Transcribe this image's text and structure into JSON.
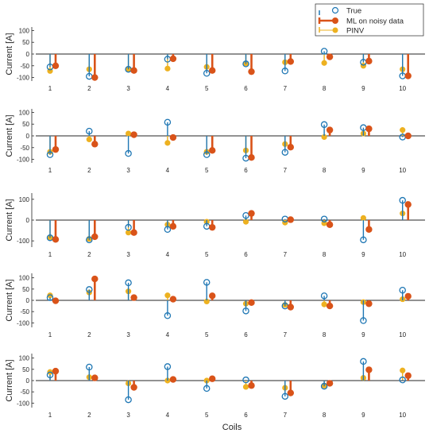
{
  "colors": {
    "true": "#1f77b4",
    "ml": "#d95319",
    "pinv": "#edb120",
    "axis": "#262626"
  },
  "legend": {
    "placement": "top-right",
    "entries": [
      {
        "key": "true",
        "label": "True"
      },
      {
        "key": "ml",
        "label": "ML on noisy data"
      },
      {
        "key": "pinv",
        "label": "PINV"
      }
    ]
  },
  "chart_data": {
    "type": "stem",
    "xlabel": "Coils",
    "ylabel": "Current [A]",
    "categories": [
      "1",
      "2",
      "3",
      "4",
      "5",
      "6",
      "7",
      "8",
      "9",
      "10"
    ],
    "panels": [
      {
        "ylim": [
          -115,
          115
        ],
        "yticks": [
          -100,
          -50,
          0,
          50,
          100
        ],
        "series": [
          {
            "name": "True",
            "values": [
              -55,
              -95,
              -65,
              -22,
              -82,
              -42,
              -72,
              12,
              -35,
              -93
            ]
          },
          {
            "name": "ML on noisy data",
            "values": [
              -50,
              -100,
              -70,
              -20,
              -70,
              -75,
              -32,
              -12,
              -30,
              -93
            ]
          },
          {
            "name": "PINV",
            "values": [
              -72,
              -65,
              -65,
              -62,
              -55,
              -40,
              -35,
              -38,
              -50,
              -65
            ]
          }
        ]
      },
      {
        "ylim": [
          -115,
          115
        ],
        "yticks": [
          -100,
          -50,
          0,
          50,
          100
        ],
        "series": [
          {
            "name": "True",
            "values": [
              -80,
              20,
              -75,
              58,
              -80,
              -95,
              -70,
              48,
              35,
              -5
            ]
          },
          {
            "name": "ML on noisy data",
            "values": [
              -58,
              -35,
              5,
              -7,
              -62,
              -92,
              -48,
              25,
              30,
              0
            ]
          },
          {
            "name": "PINV",
            "values": [
              -68,
              -15,
              10,
              -30,
              -68,
              -62,
              -35,
              -5,
              10,
              25
            ]
          }
        ]
      },
      {
        "ylim": [
          -130,
          130
        ],
        "yticks": [
          -100,
          0,
          100
        ],
        "series": [
          {
            "name": "True",
            "values": [
              -85,
              -95,
              -35,
              -45,
              -30,
              22,
              5,
              5,
              -95,
              95
            ]
          },
          {
            "name": "ML on noisy data",
            "values": [
              -93,
              -80,
              -60,
              -30,
              -35,
              32,
              2,
              -22,
              -45,
              75
            ]
          },
          {
            "name": "PINV",
            "values": [
              -85,
              -90,
              -60,
              -22,
              -8,
              -8,
              -12,
              -15,
              10,
              32
            ]
          }
        ]
      },
      {
        "ylim": [
          -120,
          120
        ],
        "yticks": [
          -100,
          -50,
          0,
          50,
          100
        ],
        "series": [
          {
            "name": "True",
            "values": [
              12,
              48,
              78,
              -68,
              80,
              -47,
              -25,
              20,
              -90,
              45
            ]
          },
          {
            "name": "ML on noisy data",
            "values": [
              -2,
              95,
              12,
              5,
              20,
              -10,
              -30,
              -25,
              -15,
              18
            ]
          },
          {
            "name": "PINV",
            "values": [
              22,
              35,
              40,
              22,
              -5,
              -15,
              -20,
              -18,
              -8,
              5
            ]
          }
        ]
      },
      {
        "ylim": [
          -120,
          120
        ],
        "yticks": [
          -100,
          -50,
          0,
          50,
          100
        ],
        "series": [
          {
            "name": "True",
            "values": [
              25,
              60,
              -85,
              62,
              -35,
              3,
              -70,
              -25,
              85,
              3
            ]
          },
          {
            "name": "ML on noisy data",
            "values": [
              42,
              12,
              -30,
              5,
              8,
              -22,
              -55,
              -12,
              48,
              22
            ]
          },
          {
            "name": "PINV",
            "values": [
              38,
              15,
              -12,
              0,
              0,
              -28,
              -32,
              -22,
              12,
              45
            ]
          }
        ]
      }
    ]
  }
}
